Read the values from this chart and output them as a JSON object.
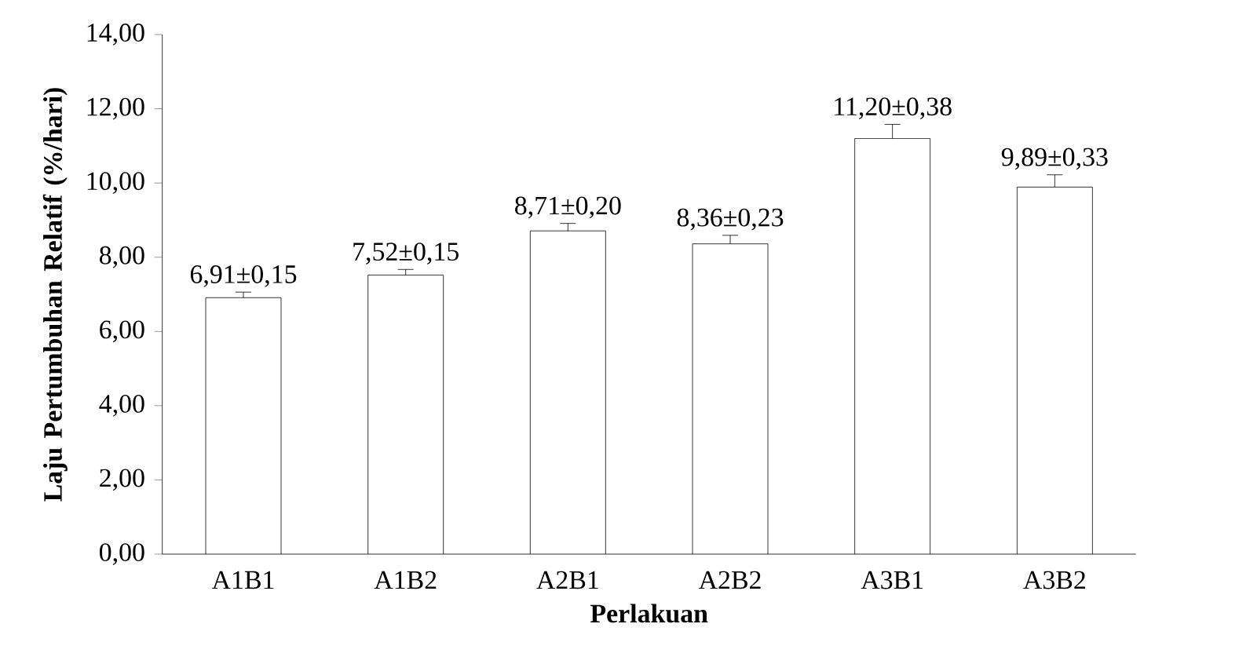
{
  "chart_data": {
    "type": "bar",
    "xlabel": "Perlakuan",
    "ylabel": "Laju Pertumbuhan Relatif (%/hari)",
    "categories": [
      "A1B1",
      "A1B2",
      "A2B1",
      "A2B2",
      "A3B1",
      "A3B2"
    ],
    "values": [
      6.91,
      7.52,
      8.71,
      8.36,
      11.2,
      9.89
    ],
    "errors": [
      0.15,
      0.15,
      0.2,
      0.23,
      0.38,
      0.33
    ],
    "value_labels": [
      "6,91±0,15",
      "7,52±0,15",
      "8,71±0,20",
      "8,36±0,23",
      "11,20±0,38",
      "9,89±0,33"
    ],
    "color": "#ffffff",
    "ylim": [
      0,
      14
    ],
    "yticks": [
      {
        "value": 0,
        "label": "0,00"
      },
      {
        "value": 2,
        "label": "2,00"
      },
      {
        "value": 4,
        "label": "4,00"
      },
      {
        "value": 6,
        "label": "6,00"
      },
      {
        "value": 8,
        "label": "8,00"
      },
      {
        "value": 10,
        "label": "10,00"
      },
      {
        "value": 12,
        "label": "12,00"
      },
      {
        "value": 14,
        "label": "14,00"
      }
    ],
    "grid": false
  }
}
